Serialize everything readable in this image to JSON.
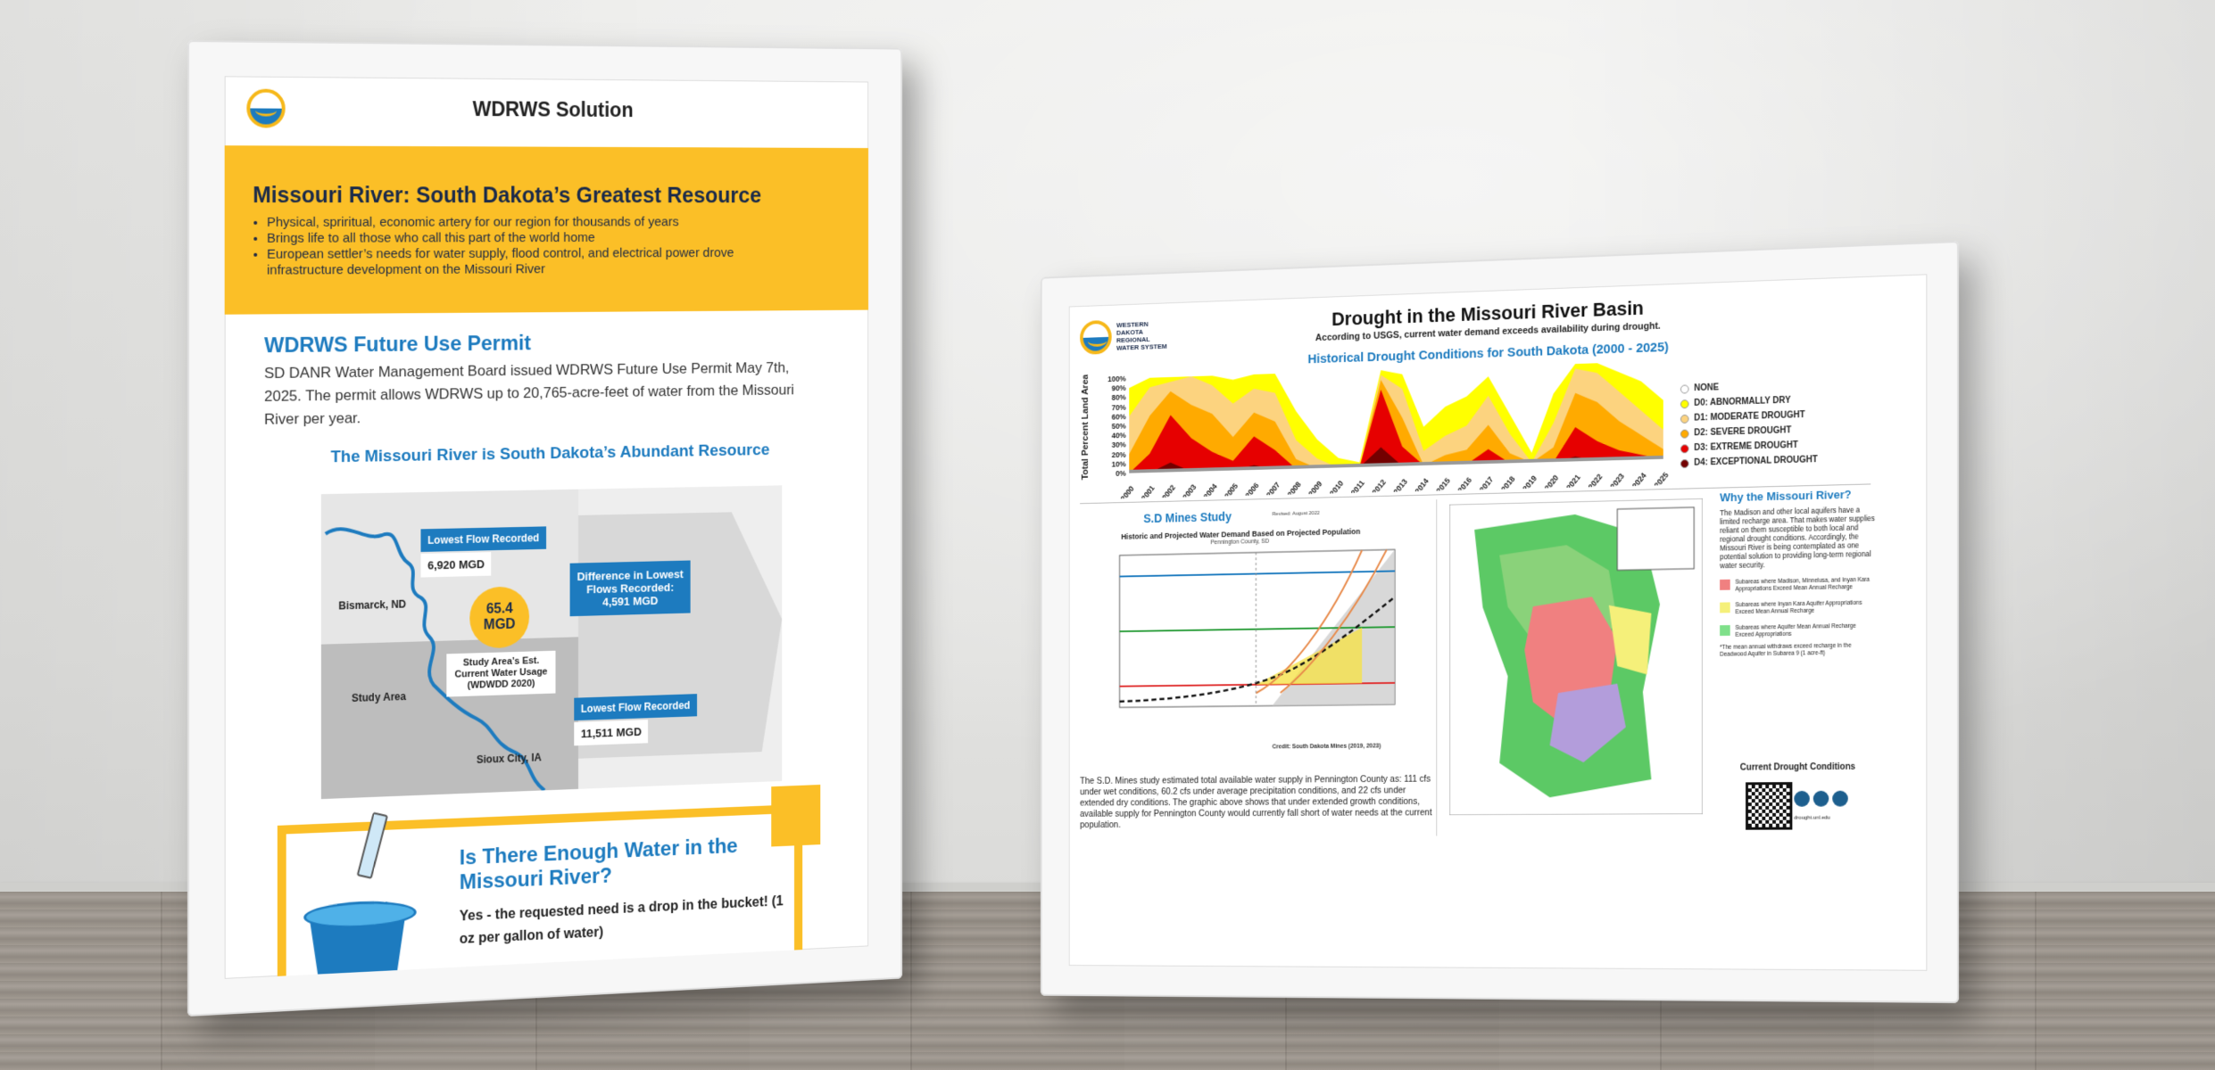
{
  "left_poster": {
    "header_title": "WDRWS Solution",
    "banner_title": "Missouri River: South Dakota’s Greatest Resource",
    "banner_bullets": [
      "Physical, spriritual, economic artery for our region for thousands of years",
      "Brings life to all those who call this part of the world home",
      "European settler’s needs for water supply, flood control, and electrical power drove infrastructure development on the Missouri River"
    ],
    "permit_title": "WDRWS Future Use Permit",
    "permit_text": "SD DANR Water Management Board issued WDRWS Future Use Permit May 7th, 2025. The permit allows WDRWS up to 20,765-acre-feet of water from the Missouri River per year.",
    "map_title": "The Missouri River is South Dakota’s Abundant Resource",
    "map": {
      "lowest_flow_label_1": "Lowest Flow Recorded",
      "lowest_flow_value_1": "6,920 MGD",
      "bismarck": "Bismarck, ND",
      "difference_label": "Difference in Lowest Flows Recorded:",
      "difference_value": "4,591 MGD",
      "mgd_value": "65.4 MGD",
      "study_area_usage": "Study Area’s Est. Current Water Usage (WDWDD 2020)",
      "study_area": "Study Area",
      "lowest_flow_label_2": "Lowest Flow Recorded",
      "lowest_flow_value_2": "11,511 MGD",
      "sioux_city": "Sioux City, IA"
    },
    "question_title": "Is There Enough Water in the Missouri River?",
    "answer_text": "Yes - the requested need is a drop in the bucket! (1 oz per gallon of water)"
  },
  "right_poster": {
    "logo_text": "WESTERN DAKOTA REGIONAL WATER SYSTEM",
    "title": "Drought in the Missouri River Basin",
    "subtitle": "According to USGS, current water demand exceeds availability during drought.",
    "chart_title": "Historical Drought Conditions for South Dakota (2000 - 2025)",
    "legend": [
      {
        "label": "NONE",
        "color": "#ffffff"
      },
      {
        "label": "D0: ABNORMALLY DRY",
        "color": "#ffff00"
      },
      {
        "label": "D1: MODERATE DROUGHT",
        "color": "#fcd37f"
      },
      {
        "label": "D2: SEVERE DROUGHT",
        "color": "#ffaa00"
      },
      {
        "label": "D3: EXTREME DROUGHT",
        "color": "#e60000"
      },
      {
        "label": "D4: EXCEPTIONAL DROUGHT",
        "color": "#730000"
      }
    ],
    "mines_title": "S.D Mines Study",
    "mines_revised": "Revised: August 2022",
    "mines_chart_title": "Historic and Projected Water Demand Based on Projected Population",
    "mines_chart_sub": "Pennington County, SD",
    "mines_credit": "Credit: South Dakota Mines (2019, 2023)",
    "mines_text": "The S.D. Mines study estimated total available water supply in Pennington County as: 111 cfs under wet conditions, 60.2 cfs under average precipitation conditions, and 22 cfs under extended dry conditions. The graphic above shows that under extended growth conditions, available supply for Pennington County would currently fall short of water needs at the current population.",
    "why_title": "Why the Missouri River?",
    "why_text": "The Madison and other local aquifers have a limited recharge area. That makes water supplies reliant on them susceptible to both local and regional drought conditions. Accordingly, the Missouri River is being contemplated as one potential solution to providing long-term regional water security.",
    "why_keys": [
      {
        "label": "Subareas where Madison, Minnelusa, and Inyan Kara Appropriations Exceed Mean Annual Recharge",
        "color": "#f08080"
      },
      {
        "label": "Subareas where Inyan Kara Aquifer Appropriations Exceed Mean Annual Recharge",
        "color": "#f5f07a"
      },
      {
        "label": "Subareas where Aquifer Mean Annual Recharge Exceed Appropriations",
        "color": "#7fe08a"
      }
    ],
    "why_note": "*The mean annual withdraws exceed recharge in the Deadwood Aquifer in Subarea 9 (1 acre-ft)",
    "current_conditions": "Current Drought Conditions",
    "drought_site": "drought.unl.edu"
  },
  "chart_data": {
    "type": "area",
    "title": "Historical Drought Conditions for South Dakota (2000 - 2025)",
    "ylabel": "Total Percent Land Area",
    "ylim": [
      0,
      100
    ],
    "yticks": [
      "0%",
      "10%",
      "20%",
      "30%",
      "40%",
      "50%",
      "60%",
      "70%",
      "80%",
      "90%",
      "100%"
    ],
    "x": [
      "2000",
      "2001",
      "2002",
      "2003",
      "2004",
      "2005",
      "2006",
      "2007",
      "2008",
      "2009",
      "2010",
      "2011",
      "2012",
      "2013",
      "2014",
      "2015",
      "2016",
      "2017",
      "2018",
      "2019",
      "2020",
      "2021",
      "2022",
      "2023",
      "2024",
      "2025"
    ],
    "series": [
      {
        "name": "D0: ABNORMALLY DRY",
        "values": [
          90,
          100,
          100,
          100,
          100,
          95,
          100,
          100,
          60,
          30,
          10,
          5,
          100,
          95,
          40,
          60,
          70,
          90,
          50,
          10,
          70,
          100,
          100,
          90,
          80,
          60
        ]
      },
      {
        "name": "D1: MODERATE DROUGHT",
        "values": [
          60,
          90,
          95,
          100,
          90,
          70,
          85,
          80,
          30,
          10,
          0,
          0,
          95,
          80,
          15,
          30,
          40,
          70,
          30,
          0,
          40,
          95,
          90,
          70,
          50,
          30
        ]
      },
      {
        "name": "D2: SEVERE DROUGHT",
        "values": [
          20,
          60,
          85,
          70,
          60,
          35,
          60,
          50,
          10,
          0,
          0,
          0,
          90,
          50,
          0,
          10,
          15,
          40,
          10,
          0,
          15,
          70,
          60,
          40,
          25,
          10
        ]
      },
      {
        "name": "D3: EXTREME DROUGHT",
        "values": [
          0,
          20,
          60,
          35,
          20,
          10,
          35,
          20,
          0,
          0,
          0,
          0,
          80,
          20,
          0,
          0,
          0,
          15,
          0,
          0,
          0,
          35,
          20,
          10,
          5,
          0
        ]
      },
      {
        "name": "D4: EXCEPTIONAL DROUGHT",
        "values": [
          0,
          0,
          10,
          0,
          0,
          0,
          5,
          0,
          0,
          0,
          0,
          0,
          20,
          0,
          0,
          0,
          0,
          0,
          0,
          0,
          0,
          5,
          0,
          0,
          0,
          0
        ]
      }
    ]
  }
}
